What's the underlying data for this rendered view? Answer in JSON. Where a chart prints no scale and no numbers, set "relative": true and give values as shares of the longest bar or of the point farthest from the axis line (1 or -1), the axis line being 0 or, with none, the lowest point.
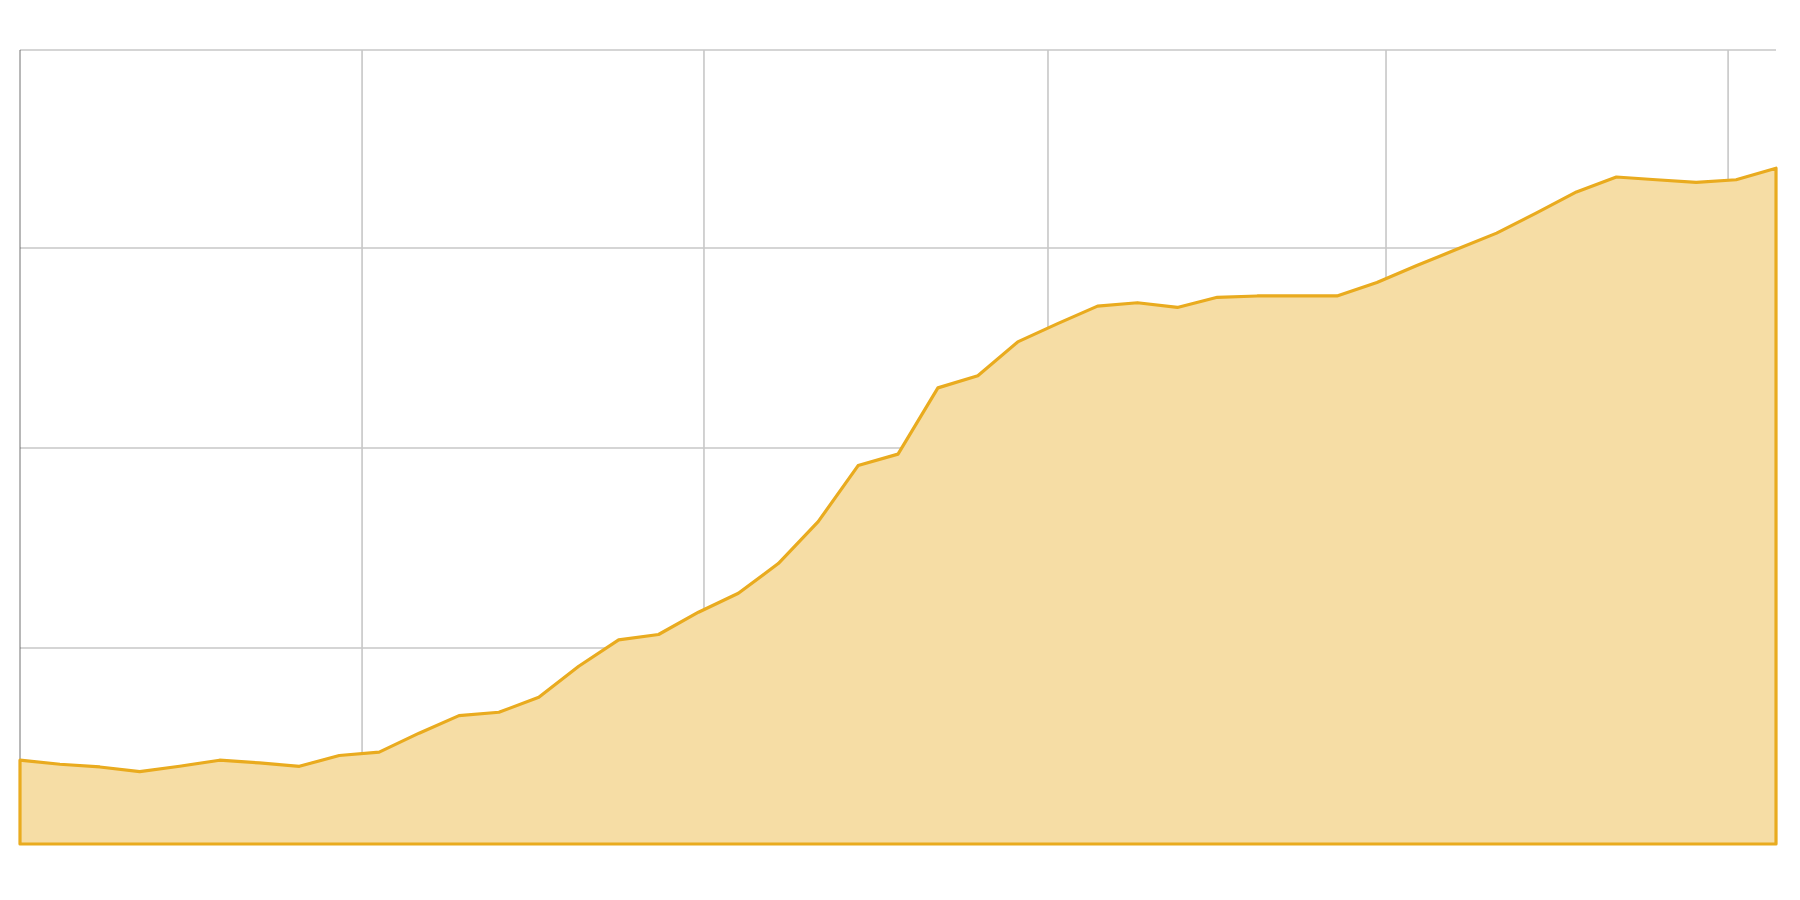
{
  "chart_data": {
    "type": "area",
    "relative": true,
    "grid": true,
    "color": "#e9ab1f",
    "categories": [
      null,
      null,
      null,
      null,
      null,
      null,
      null,
      null,
      null,
      null,
      null,
      null,
      null,
      null,
      null,
      null,
      null,
      null,
      null,
      null,
      null,
      null,
      null,
      null,
      null,
      null,
      null,
      null,
      null,
      null,
      null,
      null,
      null,
      null,
      null,
      null,
      null,
      null,
      null,
      null,
      null,
      null,
      null,
      null,
      null
    ],
    "values": [
      0.124,
      0.118,
      0.114,
      0.107,
      0.115,
      0.124,
      0.12,
      0.115,
      0.131,
      0.136,
      0.164,
      0.19,
      0.195,
      0.217,
      0.263,
      0.302,
      0.31,
      0.343,
      0.371,
      0.415,
      0.477,
      0.56,
      0.577,
      0.675,
      0.693,
      0.743,
      0.77,
      0.796,
      0.801,
      0.794,
      0.809,
      0.811,
      0.811,
      0.811,
      0.831,
      0.856,
      0.88,
      0.904,
      0.934,
      0.965,
      0.987,
      0.983,
      0.979,
      0.983,
      1
    ]
  }
}
